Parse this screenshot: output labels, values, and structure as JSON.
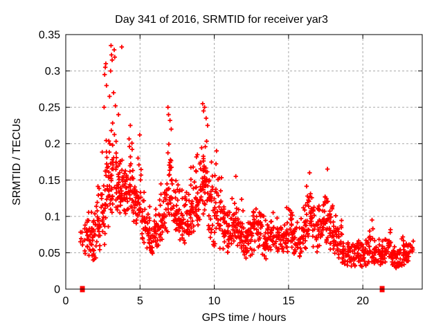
{
  "title": "Day 341 of 2016, SRMTID for receiver yar3",
  "colors": {
    "marker": "#ff0000",
    "grid": "#a8a8a8",
    "frame": "#000000",
    "text": "#000000",
    "background": "#ffffff"
  },
  "chart_data": {
    "type": "scatter",
    "title": "Day 341 of 2016, SRMTID for receiver yar3",
    "xlabel": "GPS time / hours",
    "ylabel": "SRMTID / TECUs",
    "xlim": [
      0,
      24
    ],
    "ylim": [
      0,
      0.35
    ],
    "grid": true,
    "legend": "none",
    "marker": "plus",
    "marker_color": "#ff0000",
    "x_ticks": {
      "values": [
        0,
        5,
        10,
        15,
        20
      ],
      "labels": [
        "0",
        "5",
        "10",
        "15",
        "20"
      ]
    },
    "y_ticks": {
      "values": [
        0,
        0.05,
        0.1,
        0.15,
        0.2,
        0.25,
        0.3,
        0.35
      ],
      "labels": [
        "0",
        "0.05",
        "0.1",
        "0.15",
        "0.2",
        "0.25",
        "0.3",
        "0.35"
      ]
    },
    "band_start": 0.9,
    "band_width": 0.3,
    "bands_format": [
      "count",
      "y_min",
      "y_max"
    ],
    "bands": [
      [
        6,
        0.055,
        0.1
      ],
      [
        14,
        0.045,
        0.105
      ],
      [
        20,
        0.04,
        0.11
      ],
      [
        22,
        0.035,
        0.12
      ],
      [
        22,
        0.05,
        0.15
      ],
      [
        24,
        0.06,
        0.2
      ],
      [
        26,
        0.08,
        0.25
      ],
      [
        26,
        0.1,
        0.25
      ],
      [
        24,
        0.09,
        0.23
      ],
      [
        24,
        0.1,
        0.2
      ],
      [
        24,
        0.09,
        0.2
      ],
      [
        24,
        0.1,
        0.22
      ],
      [
        22,
        0.08,
        0.18
      ],
      [
        22,
        0.07,
        0.2
      ],
      [
        20,
        0.06,
        0.14
      ],
      [
        20,
        0.05,
        0.12
      ],
      [
        20,
        0.045,
        0.11
      ],
      [
        20,
        0.05,
        0.13
      ],
      [
        22,
        0.06,
        0.15
      ],
      [
        24,
        0.07,
        0.2
      ],
      [
        24,
        0.08,
        0.22
      ],
      [
        22,
        0.07,
        0.17
      ],
      [
        22,
        0.06,
        0.15
      ],
      [
        22,
        0.06,
        0.14
      ],
      [
        22,
        0.07,
        0.15
      ],
      [
        22,
        0.075,
        0.18
      ],
      [
        24,
        0.08,
        0.2
      ],
      [
        24,
        0.09,
        0.22
      ],
      [
        24,
        0.1,
        0.22
      ],
      [
        24,
        0.07,
        0.2
      ],
      [
        20,
        0.05,
        0.185
      ],
      [
        20,
        0.05,
        0.17
      ],
      [
        20,
        0.045,
        0.14
      ],
      [
        20,
        0.04,
        0.12
      ],
      [
        20,
        0.05,
        0.15
      ],
      [
        20,
        0.05,
        0.145
      ],
      [
        20,
        0.045,
        0.13
      ],
      [
        20,
        0.04,
        0.12
      ],
      [
        20,
        0.045,
        0.115
      ],
      [
        20,
        0.05,
        0.13
      ],
      [
        20,
        0.045,
        0.12
      ],
      [
        18,
        0.04,
        0.11
      ],
      [
        18,
        0.045,
        0.105
      ],
      [
        18,
        0.05,
        0.11
      ],
      [
        18,
        0.045,
        0.1
      ],
      [
        18,
        0.05,
        0.105
      ],
      [
        20,
        0.05,
        0.115
      ],
      [
        20,
        0.05,
        0.125
      ],
      [
        18,
        0.045,
        0.11
      ],
      [
        18,
        0.04,
        0.1
      ],
      [
        20,
        0.05,
        0.12
      ],
      [
        22,
        0.05,
        0.155
      ],
      [
        20,
        0.05,
        0.145
      ],
      [
        20,
        0.05,
        0.125
      ],
      [
        20,
        0.055,
        0.13
      ],
      [
        20,
        0.06,
        0.165
      ],
      [
        20,
        0.05,
        0.13
      ],
      [
        20,
        0.045,
        0.115
      ],
      [
        18,
        0.04,
        0.1
      ],
      [
        18,
        0.03,
        0.08
      ],
      [
        18,
        0.03,
        0.07
      ],
      [
        18,
        0.025,
        0.065
      ],
      [
        18,
        0.03,
        0.07
      ],
      [
        18,
        0.03,
        0.075
      ],
      [
        18,
        0.03,
        0.08
      ],
      [
        18,
        0.035,
        0.09
      ],
      [
        18,
        0.03,
        0.075
      ],
      [
        16,
        0.03,
        0.07
      ],
      [
        18,
        0.035,
        0.08
      ],
      [
        18,
        0.04,
        0.085
      ],
      [
        18,
        0.03,
        0.07
      ],
      [
        18,
        0.025,
        0.065
      ],
      [
        20,
        0.03,
        0.075
      ],
      [
        18,
        0.035,
        0.07
      ],
      [
        8,
        0.04,
        0.07
      ]
    ],
    "outliers": [
      [
        2.58,
        0.25
      ],
      [
        2.62,
        0.295
      ],
      [
        2.66,
        0.305
      ],
      [
        2.7,
        0.31
      ],
      [
        2.74,
        0.28
      ],
      [
        2.95,
        0.265
      ],
      [
        3.02,
        0.3
      ],
      [
        3.05,
        0.335
      ],
      [
        3.08,
        0.322
      ],
      [
        3.12,
        0.315
      ],
      [
        3.22,
        0.27
      ],
      [
        3.26,
        0.329
      ],
      [
        3.3,
        0.319
      ],
      [
        3.34,
        0.252
      ],
      [
        3.55,
        0.24
      ],
      [
        3.77,
        0.333
      ],
      [
        4.35,
        0.225
      ],
      [
        4.98,
        0.212
      ],
      [
        6.88,
        0.25
      ],
      [
        6.92,
        0.24
      ],
      [
        7.02,
        0.232
      ],
      [
        7.1,
        0.22
      ],
      [
        9.22,
        0.255
      ],
      [
        9.28,
        0.245
      ],
      [
        9.35,
        0.25
      ],
      [
        9.45,
        0.235
      ],
      [
        9.55,
        0.225
      ],
      [
        10.15,
        0.19
      ],
      [
        11.45,
        0.155
      ],
      [
        16.42,
        0.16
      ],
      [
        17.62,
        0.165
      ],
      [
        20.62,
        0.095
      ]
    ],
    "zero_markers": [
      1.12,
      21.3
    ]
  }
}
